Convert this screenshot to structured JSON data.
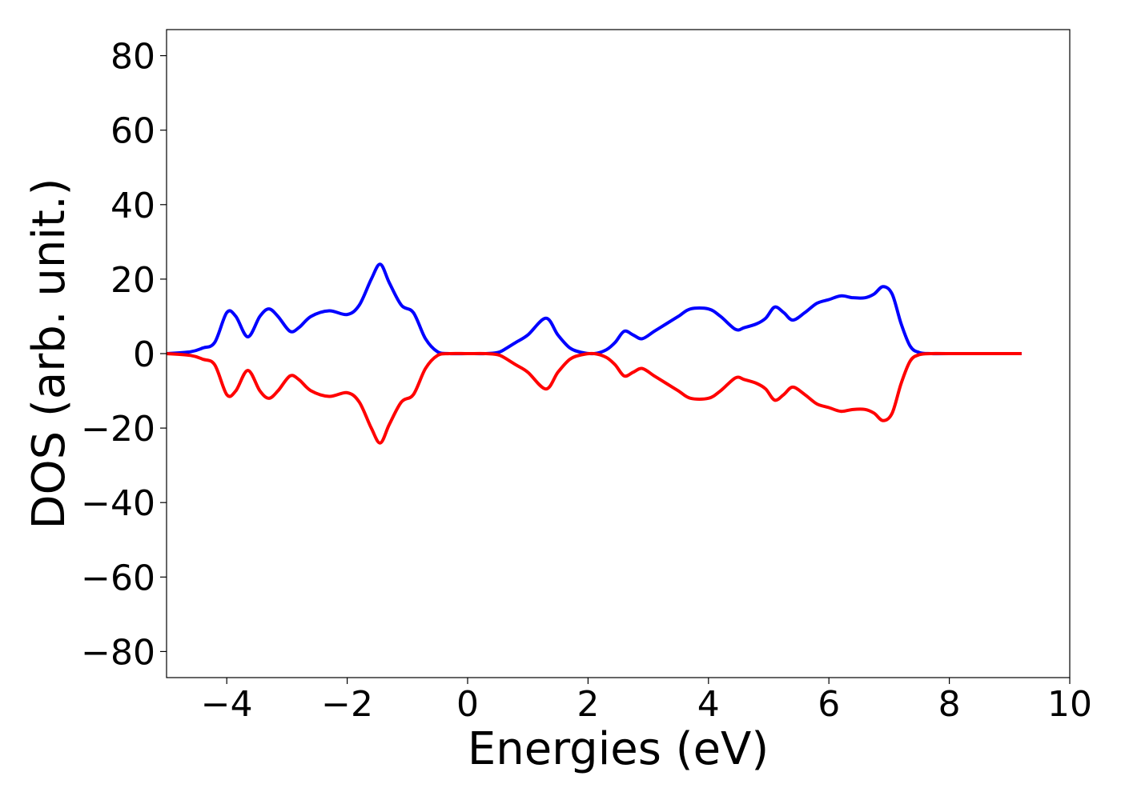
{
  "chart_data": {
    "type": "line",
    "xlabel": "Energies (eV)",
    "ylabel": "DOS (arb. unit.)",
    "xlim": [
      -5,
      10
    ],
    "ylim": [
      -87,
      87
    ],
    "xticks": [
      -4,
      -2,
      0,
      2,
      4,
      6,
      8,
      10
    ],
    "xtick_labels": [
      "−4",
      "−2",
      "0",
      "2",
      "4",
      "6",
      "8",
      "10"
    ],
    "yticks": [
      80,
      60,
      40,
      20,
      0,
      -20,
      -40,
      -60,
      -80
    ],
    "ytick_labels": [
      "80",
      "60",
      "40",
      "20",
      "0",
      "−20",
      "−40",
      "−60",
      "−80"
    ],
    "grid": false,
    "series": [
      {
        "color": "#0000ff",
        "x": [
          -5.0,
          -4.6,
          -4.4,
          -4.2,
          -4.0,
          -3.85,
          -3.65,
          -3.45,
          -3.3,
          -3.15,
          -2.95,
          -2.8,
          -2.6,
          -2.3,
          -2.0,
          -1.8,
          -1.6,
          -1.45,
          -1.3,
          -1.1,
          -0.9,
          -0.7,
          -0.5,
          -0.3,
          0.0,
          0.3,
          0.5,
          0.6,
          0.8,
          1.0,
          1.3,
          1.5,
          1.7,
          1.9,
          2.1,
          2.3,
          2.45,
          2.6,
          2.75,
          2.9,
          3.1,
          3.3,
          3.5,
          3.7,
          4.0,
          4.2,
          4.45,
          4.6,
          4.8,
          4.95,
          5.1,
          5.25,
          5.4,
          5.6,
          5.8,
          6.0,
          6.2,
          6.4,
          6.6,
          6.75,
          6.9,
          7.05,
          7.2,
          7.35,
          7.5,
          7.7,
          8.0,
          9.2
        ],
        "values": [
          0,
          0.5,
          1.5,
          3,
          11,
          10,
          4.5,
          10,
          12,
          10,
          6,
          7,
          10,
          11.5,
          10.5,
          13,
          20,
          24,
          19,
          13,
          11,
          4,
          0.5,
          0,
          0,
          0,
          0.3,
          1,
          3,
          5,
          9.5,
          5,
          1.5,
          0.3,
          0,
          1,
          3,
          6,
          5,
          4,
          6,
          8,
          10,
          12,
          12,
          10,
          6.5,
          7,
          8,
          9.5,
          12.5,
          11,
          9,
          11,
          13.5,
          14.5,
          15.5,
          15,
          15,
          16,
          18,
          16,
          8,
          2,
          0.3,
          0,
          0,
          0
        ]
      },
      {
        "color": "#ff0000",
        "x": [
          -5.0,
          -4.6,
          -4.4,
          -4.2,
          -4.0,
          -3.85,
          -3.65,
          -3.45,
          -3.3,
          -3.15,
          -2.95,
          -2.8,
          -2.6,
          -2.3,
          -2.0,
          -1.8,
          -1.6,
          -1.45,
          -1.3,
          -1.1,
          -0.9,
          -0.7,
          -0.5,
          -0.3,
          0.0,
          0.3,
          0.5,
          0.6,
          0.8,
          1.0,
          1.3,
          1.5,
          1.7,
          1.9,
          2.1,
          2.3,
          2.45,
          2.6,
          2.75,
          2.9,
          3.1,
          3.3,
          3.5,
          3.7,
          4.0,
          4.2,
          4.45,
          4.6,
          4.8,
          4.95,
          5.1,
          5.25,
          5.4,
          5.6,
          5.8,
          6.0,
          6.2,
          6.4,
          6.6,
          6.75,
          6.9,
          7.05,
          7.2,
          7.35,
          7.5,
          7.7,
          8.0,
          9.2
        ],
        "values": [
          0,
          -0.5,
          -1.5,
          -3,
          -11,
          -10,
          -4.5,
          -10,
          -12,
          -10,
          -6,
          -7,
          -10,
          -11.5,
          -10.5,
          -13,
          -20,
          -24,
          -19,
          -13,
          -11,
          -4,
          -0.5,
          0,
          0,
          0,
          -0.3,
          -1,
          -3,
          -5,
          -9.5,
          -5,
          -1.5,
          -0.3,
          0,
          -1,
          -3,
          -6,
          -5,
          -4,
          -6,
          -8,
          -10,
          -12,
          -12,
          -10,
          -6.5,
          -7,
          -8,
          -9.5,
          -12.5,
          -11,
          -9,
          -11,
          -13.5,
          -14.5,
          -15.5,
          -15,
          -15,
          -16,
          -18,
          -16,
          -8,
          -2,
          -0.3,
          0,
          0,
          0
        ]
      }
    ]
  }
}
